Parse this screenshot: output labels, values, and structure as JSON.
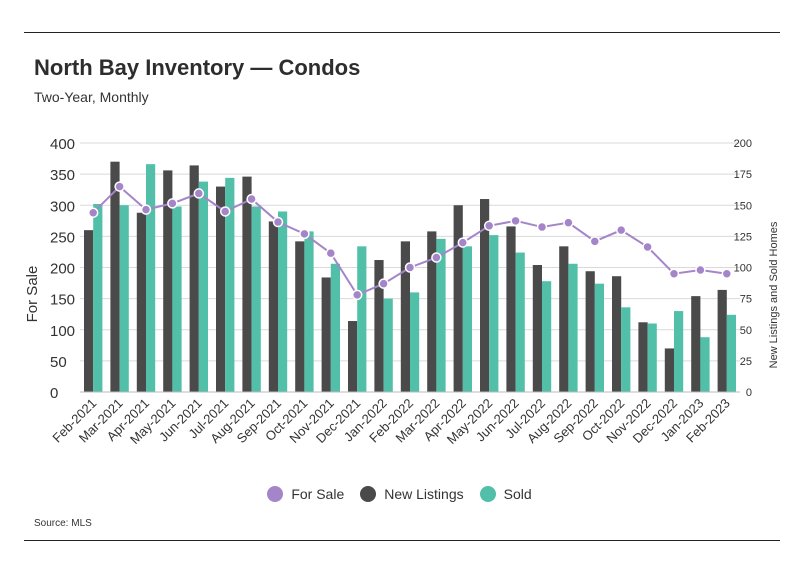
{
  "title": "North Bay Inventory — Condos",
  "subtitle": "Two-Year, Monthly",
  "source": "Source: MLS",
  "chart_data": {
    "type": "bar",
    "categories": [
      "Feb-2021",
      "Mar-2021",
      "Apr-2021",
      "May-2021",
      "Jun-2021",
      "Jul-2021",
      "Aug-2021",
      "Sep-2021",
      "Oct-2021",
      "Nov-2021",
      "Dec-2021",
      "Jan-2022",
      "Feb-2022",
      "Mar-2022",
      "Apr-2022",
      "May-2022",
      "Jun-2022",
      "Jul-2022",
      "Aug-2022",
      "Sep-2022",
      "Oct-2022",
      "Nov-2022",
      "Dec-2022",
      "Jan-2023",
      "Feb-2023"
    ],
    "ylabel": "For Sale",
    "y2label": "New Listings and Sold Homes",
    "ylim": [
      0,
      400
    ],
    "y2lim": [
      0,
      200
    ],
    "yticks": [
      0,
      50,
      100,
      150,
      200,
      250,
      300,
      350,
      400
    ],
    "y2ticks": [
      0,
      25,
      50,
      75,
      100,
      125,
      150,
      175,
      200
    ],
    "grid": true,
    "legend_position": "bottom",
    "series": [
      {
        "name": "For Sale",
        "kind": "line",
        "axis": "left",
        "color": "#a585c9",
        "values": [
          288,
          330,
          293,
          303,
          319,
          290,
          310,
          273,
          254,
          223,
          156,
          174,
          200,
          216,
          240,
          267,
          275,
          265,
          272,
          242,
          260,
          233,
          190,
          196,
          190
        ]
      },
      {
        "name": "New Listings",
        "kind": "bar",
        "axis": "right",
        "color": "#4a4a4a",
        "values": [
          130,
          185,
          144,
          178,
          182,
          165,
          173,
          137,
          121,
          92,
          57,
          106,
          121,
          129,
          150,
          155,
          133,
          102,
          117,
          97,
          93,
          56,
          35,
          77,
          82
        ]
      },
      {
        "name": "Sold",
        "kind": "bar",
        "axis": "right",
        "color": "#52bfa8",
        "values": [
          151,
          150,
          183,
          149,
          169,
          172,
          149,
          145,
          129,
          103,
          117,
          75,
          80,
          123,
          117,
          126,
          112,
          89,
          103,
          87,
          68,
          55,
          65,
          44,
          62
        ]
      }
    ]
  }
}
